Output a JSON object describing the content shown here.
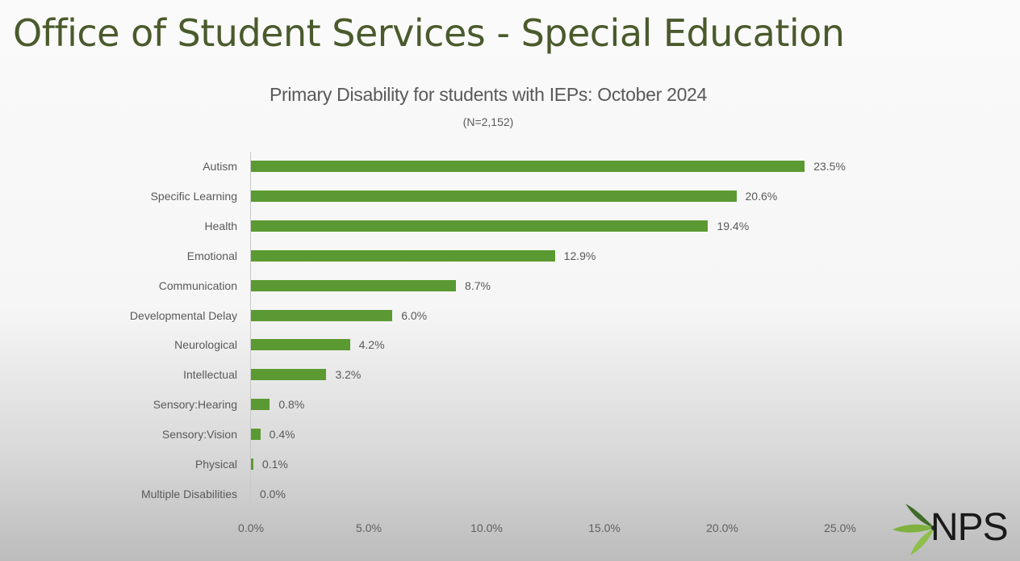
{
  "slide": {
    "title": "Office of Student Services - Special Education"
  },
  "chart": {
    "title": "Primary Disability for students with IEPs: October 2024",
    "subtitle": "(N=2,152)",
    "bar_color": "#5b9a32",
    "title_color": "#4a5a2c",
    "rows": [
      {
        "label": "Autism",
        "value": 23.5,
        "value_label": "23.5%"
      },
      {
        "label": "Specific Learning",
        "value": 20.6,
        "value_label": "20.6%"
      },
      {
        "label": "Health",
        "value": 19.4,
        "value_label": "19.4%"
      },
      {
        "label": "Emotional",
        "value": 12.9,
        "value_label": "12.9%"
      },
      {
        "label": "Communication",
        "value": 8.7,
        "value_label": "8.7%"
      },
      {
        "label": "Developmental Delay",
        "value": 6.0,
        "value_label": "6.0%"
      },
      {
        "label": "Neurological",
        "value": 4.2,
        "value_label": "4.2%"
      },
      {
        "label": "Intellectual",
        "value": 3.2,
        "value_label": "3.2%"
      },
      {
        "label": "Sensory:Hearing",
        "value": 0.8,
        "value_label": "0.8%"
      },
      {
        "label": "Sensory:Vision",
        "value": 0.4,
        "value_label": "0.4%"
      },
      {
        "label": "Physical",
        "value": 0.1,
        "value_label": "0.1%"
      },
      {
        "label": "Multiple Disabilities",
        "value": 0.0,
        "value_label": "0.0%"
      }
    ],
    "x_ticks": [
      "0.0%",
      "5.0%",
      "10.0%",
      "15.0%",
      "20.0%",
      "25.0%"
    ]
  },
  "logo": {
    "text": "NPS",
    "icon": "leaf-icon"
  },
  "chart_data": {
    "type": "bar",
    "orientation": "horizontal",
    "title": "Primary Disability for students with IEPs: October 2024",
    "subtitle": "(N=2,152)",
    "categories": [
      "Autism",
      "Specific Learning",
      "Health",
      "Emotional",
      "Communication",
      "Developmental Delay",
      "Neurological",
      "Intellectual",
      "Sensory:Hearing",
      "Sensory:Vision",
      "Physical",
      "Multiple Disabilities"
    ],
    "values": [
      23.5,
      20.6,
      19.4,
      12.9,
      8.7,
      6.0,
      4.2,
      3.2,
      0.8,
      0.4,
      0.1,
      0.0
    ],
    "unit": "%",
    "xlabel": "",
    "ylabel": "",
    "xlim": [
      0,
      25
    ],
    "x_tick_labels": [
      "0.0%",
      "5.0%",
      "10.0%",
      "15.0%",
      "20.0%",
      "25.0%"
    ],
    "data_labels": true,
    "grid": false,
    "legend": null
  }
}
